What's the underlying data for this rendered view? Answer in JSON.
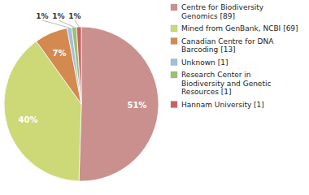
{
  "chart_data": {
    "type": "pie",
    "categories": [
      "Centre for Biodiversity\nGenomics [89]",
      "Mined from GenBank, NCBI [69]",
      "Canadian Centre for DNA\nBarcoding [13]",
      "Unknown [1]",
      "Research Center in\nBiodiversity and Genetic\nResources [1]",
      "Hannam University [1]"
    ],
    "values": [
      51,
      40,
      7,
      1,
      1,
      1
    ],
    "value_labels": [
      "51%",
      "40%",
      "7%",
      "1%",
      "1%",
      "1%"
    ],
    "colors": [
      "#c9908e",
      "#cdd876",
      "#d4894e",
      "#a0bfe0",
      "#9dc06e",
      "#c96060"
    ],
    "data_labels": true,
    "legend": "right"
  }
}
